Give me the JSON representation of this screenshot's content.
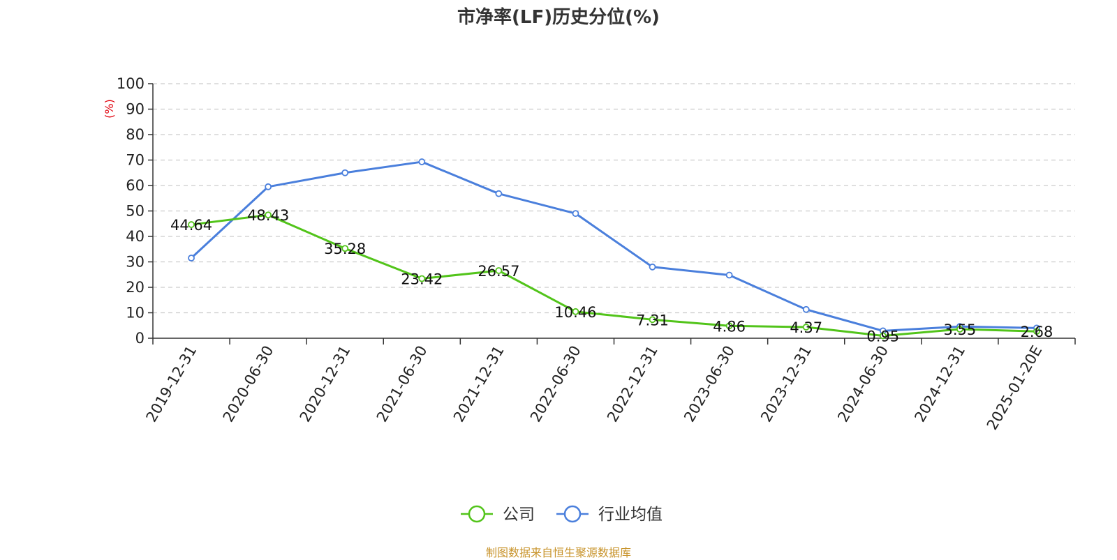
{
  "chart_data": {
    "type": "line",
    "title": "市净率(LF)历史分位(%)",
    "ylabel": "(%)",
    "xlabel": "",
    "categories": [
      "2019-12-31",
      "2020-06-30",
      "2020-12-31",
      "2021-06-30",
      "2021-12-31",
      "2022-06-30",
      "2022-12-31",
      "2023-06-30",
      "2023-12-31",
      "2024-06-30",
      "2024-12-31",
      "2025-01-20E"
    ],
    "y_ticks": [
      "0",
      "10",
      "20",
      "30",
      "40",
      "50",
      "60",
      "70",
      "80",
      "90",
      "100"
    ],
    "ylim": [
      0,
      100
    ],
    "grid": true,
    "legend_position": "bottom-center",
    "series": [
      {
        "name": "公司",
        "color": "#52c41a",
        "values": [
          44.64,
          48.43,
          35.28,
          23.42,
          26.57,
          10.46,
          7.31,
          4.86,
          4.37,
          0.95,
          3.55,
          2.68
        ],
        "labels": [
          "44.64",
          "48.43",
          "35.28",
          "23.42",
          "26.57",
          "10.46",
          "7.31",
          "4.86",
          "4.37",
          "0.95",
          "3.55",
          "2.68"
        ]
      },
      {
        "name": "行业均值",
        "color": "#4a7fdc",
        "values": [
          31.5,
          59.5,
          65.0,
          69.3,
          56.8,
          49.0,
          28.0,
          24.8,
          11.3,
          2.9,
          4.6,
          4.0
        ]
      }
    ]
  },
  "source": "制图数据来自恒生聚源数据库"
}
